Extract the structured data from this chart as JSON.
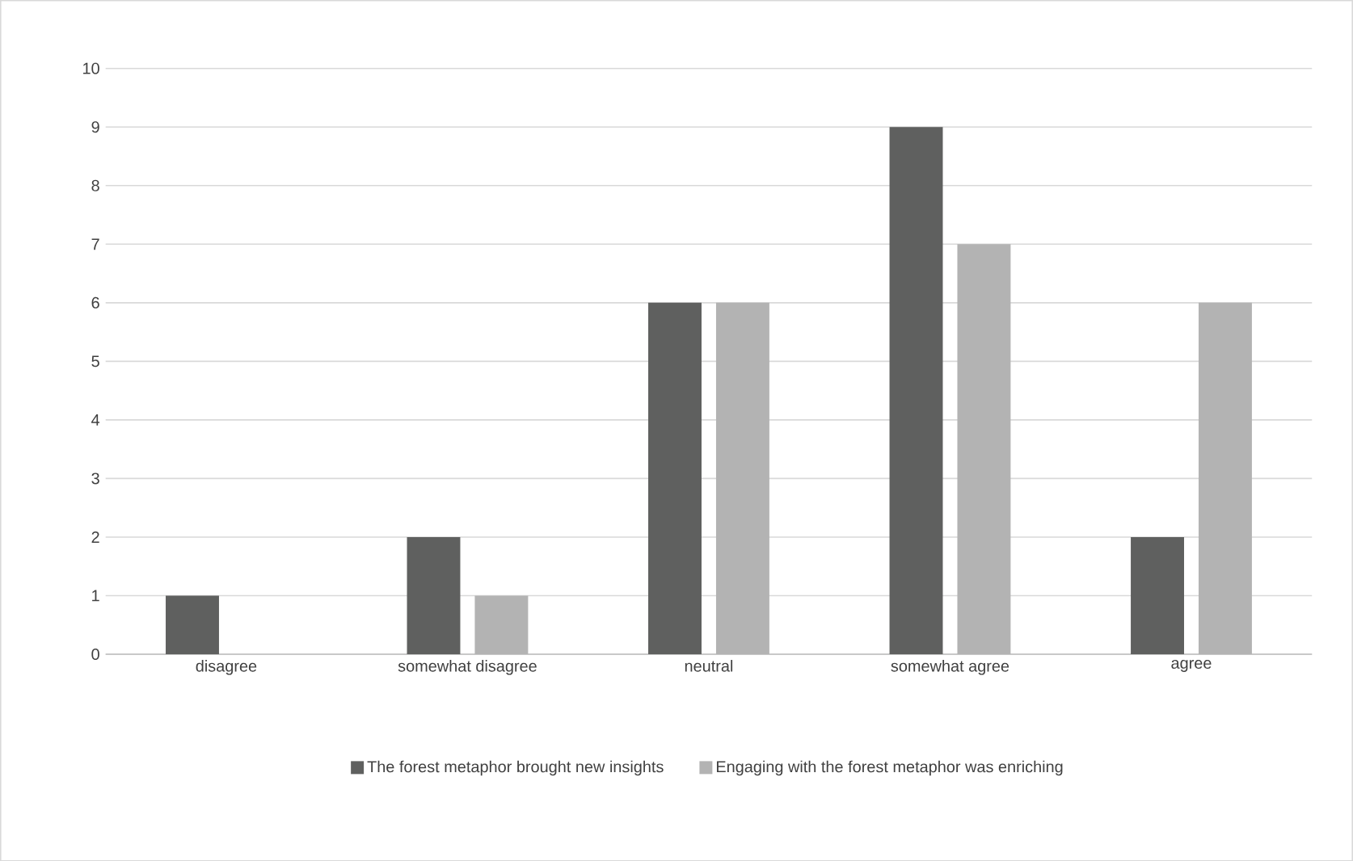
{
  "chart_data": {
    "type": "bar",
    "categories": [
      "disagree",
      "somewhat disagree",
      "neutral",
      "somewhat agree",
      "agree"
    ],
    "series": [
      {
        "name": "The forest metaphor brought new insights",
        "color": "#5f605f",
        "values": [
          1,
          2,
          6,
          9,
          2
        ]
      },
      {
        "name": "Engaging with the forest metaphor was enriching",
        "color": "#b3b3b3",
        "values": [
          0,
          1,
          6,
          7,
          6
        ]
      }
    ],
    "ylim": [
      0,
      10
    ],
    "yticks": [
      0,
      1,
      2,
      3,
      4,
      5,
      6,
      7,
      8,
      9,
      10
    ],
    "grid": "y",
    "legend": "bottom"
  }
}
